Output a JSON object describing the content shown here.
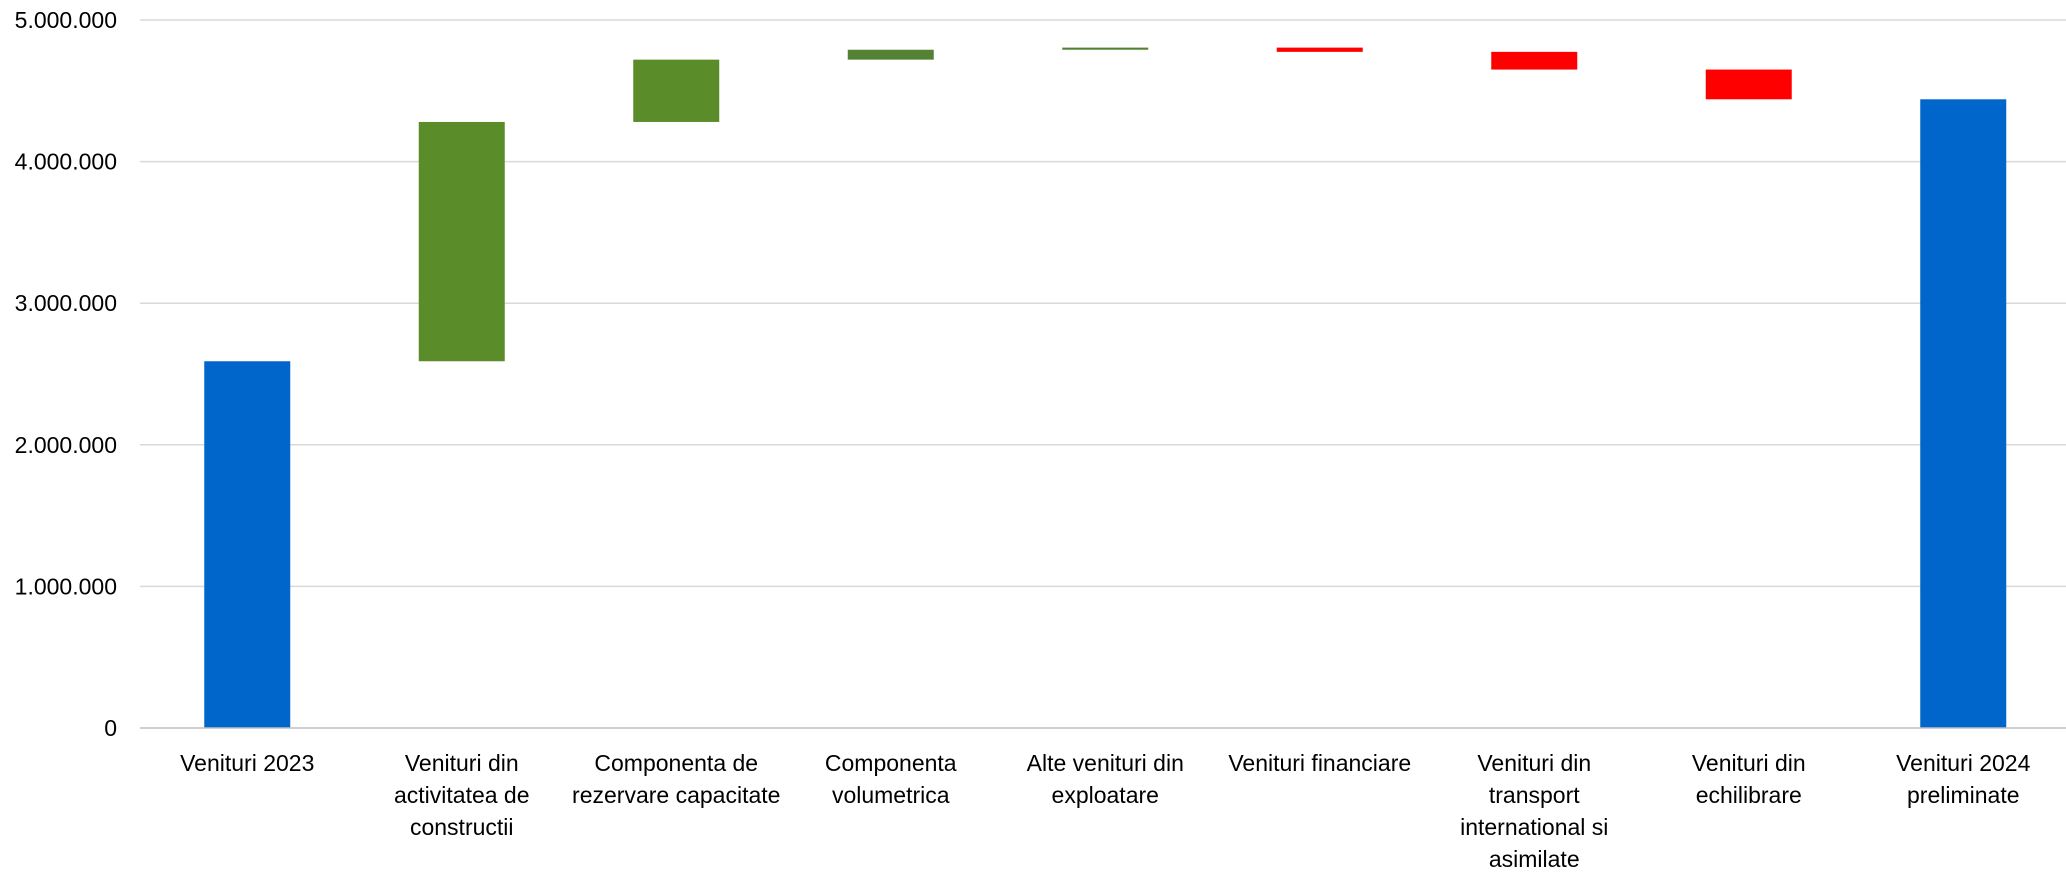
{
  "chart_data": {
    "type": "waterfall",
    "ylim": [
      0,
      5000000
    ],
    "yticks": [
      0,
      1000000,
      2000000,
      3000000,
      4000000,
      5000000
    ],
    "ytick_labels": [
      "0",
      "1.000.000",
      "2.000.000",
      "3.000.000",
      "4.000.000",
      "5.000.000"
    ],
    "grid": true,
    "legend": "none",
    "categories": [
      [
        "Venituri 2023"
      ],
      [
        "Venituri din",
        "activitatea de",
        "constructii"
      ],
      [
        "Componenta de",
        "rezervare capacitate"
      ],
      [
        "Componenta",
        "volumetrica"
      ],
      [
        "Alte venituri din",
        "exploatare"
      ],
      [
        "Venituri financiare"
      ],
      [
        "Venituri din",
        "transport",
        "international si",
        "asimilate"
      ],
      [
        "Venituri din",
        "echilibrare"
      ],
      [
        "Venituri 2024",
        "preliminate"
      ]
    ],
    "bars": [
      {
        "kind": "total",
        "start": 0,
        "end": 2590000
      },
      {
        "kind": "increase",
        "start": 2590000,
        "end": 4280000
      },
      {
        "kind": "increase",
        "start": 4280000,
        "end": 4720000
      },
      {
        "kind": "increase",
        "start": 4720000,
        "end": 4790000
      },
      {
        "kind": "increase",
        "start": 4790000,
        "end": 4805000
      },
      {
        "kind": "decrease",
        "start": 4805000,
        "end": 4775000
      },
      {
        "kind": "decrease",
        "start": 4775000,
        "end": 4650000
      },
      {
        "kind": "decrease",
        "start": 4650000,
        "end": 4440000
      },
      {
        "kind": "total",
        "start": 0,
        "end": 4440000
      }
    ],
    "colors": {
      "total": "#0066CC",
      "increase": [
        "#5B8C2A",
        "#5B8C2A",
        "#548235",
        "#548235",
        "#548235"
      ],
      "decrease": "#FF0000",
      "grid": "#D9D9D9",
      "axis": "#BFBFBF"
    }
  }
}
